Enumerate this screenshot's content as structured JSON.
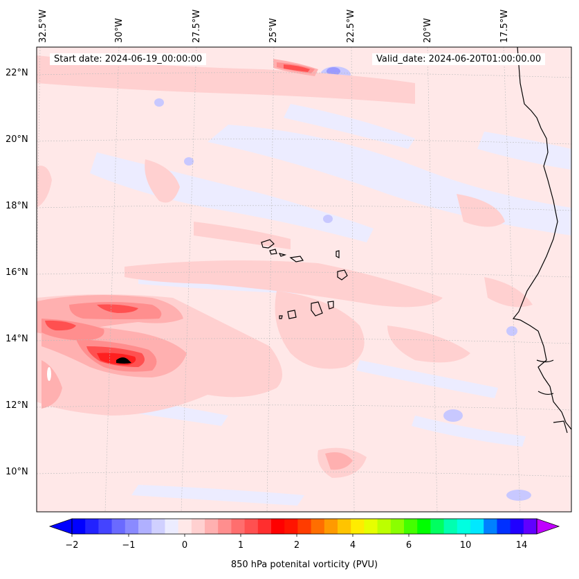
{
  "header": {
    "start_text": "Start date: 2024-06-19_00:00:00",
    "valid_text": "Valid_date: 2024-06-20T01:00:00.00"
  },
  "longitude_labels": [
    "32.5°W",
    "30°W",
    "27.5°W",
    "25°W",
    "22.5°W",
    "20°W",
    "17.5°W"
  ],
  "latitude_labels": [
    "22°N",
    "20°N",
    "18°N",
    "16°N",
    "14°N",
    "12°N",
    "10°N"
  ],
  "colorbar": {
    "label": "850 hPa potenital vorticity (PVU)",
    "ticks": [
      "−2",
      "−1",
      "0",
      "1",
      "2",
      "4",
      "6",
      "10",
      "14"
    ],
    "colors": [
      "#0000ff",
      "#2222ff",
      "#4444ff",
      "#6a6aff",
      "#8a8aff",
      "#b0b0ff",
      "#d0d0ff",
      "#ececff",
      "#ffe8e8",
      "#ffd0d0",
      "#ffb0b0",
      "#ff8e8e",
      "#ff6e6e",
      "#ff5050",
      "#ff2e2e",
      "#ff0000",
      "#ff1400",
      "#ff3c00",
      "#ff6e00",
      "#ff9a00",
      "#ffc400",
      "#ffec00",
      "#e6ff00",
      "#bcff00",
      "#8aff00",
      "#44ff00",
      "#00ff00",
      "#00ff60",
      "#00ffb0",
      "#00ffe0",
      "#00e8ff",
      "#0080ff",
      "#0030ff",
      "#2000ff",
      "#6000ff"
    ],
    "under_color": "#0000ff",
    "over_color": "#c000ff"
  },
  "colors": {
    "background_field": "#ffe8e8",
    "weak_positive": "#ffd0d0",
    "moderate_positive": "#ffb0b0",
    "strong_positive": "#ff5050",
    "max_positive": "#ff2020",
    "weak_negative": "#ececff",
    "moderate_negative": "#c8c8ff",
    "coastline": "#000000"
  }
}
